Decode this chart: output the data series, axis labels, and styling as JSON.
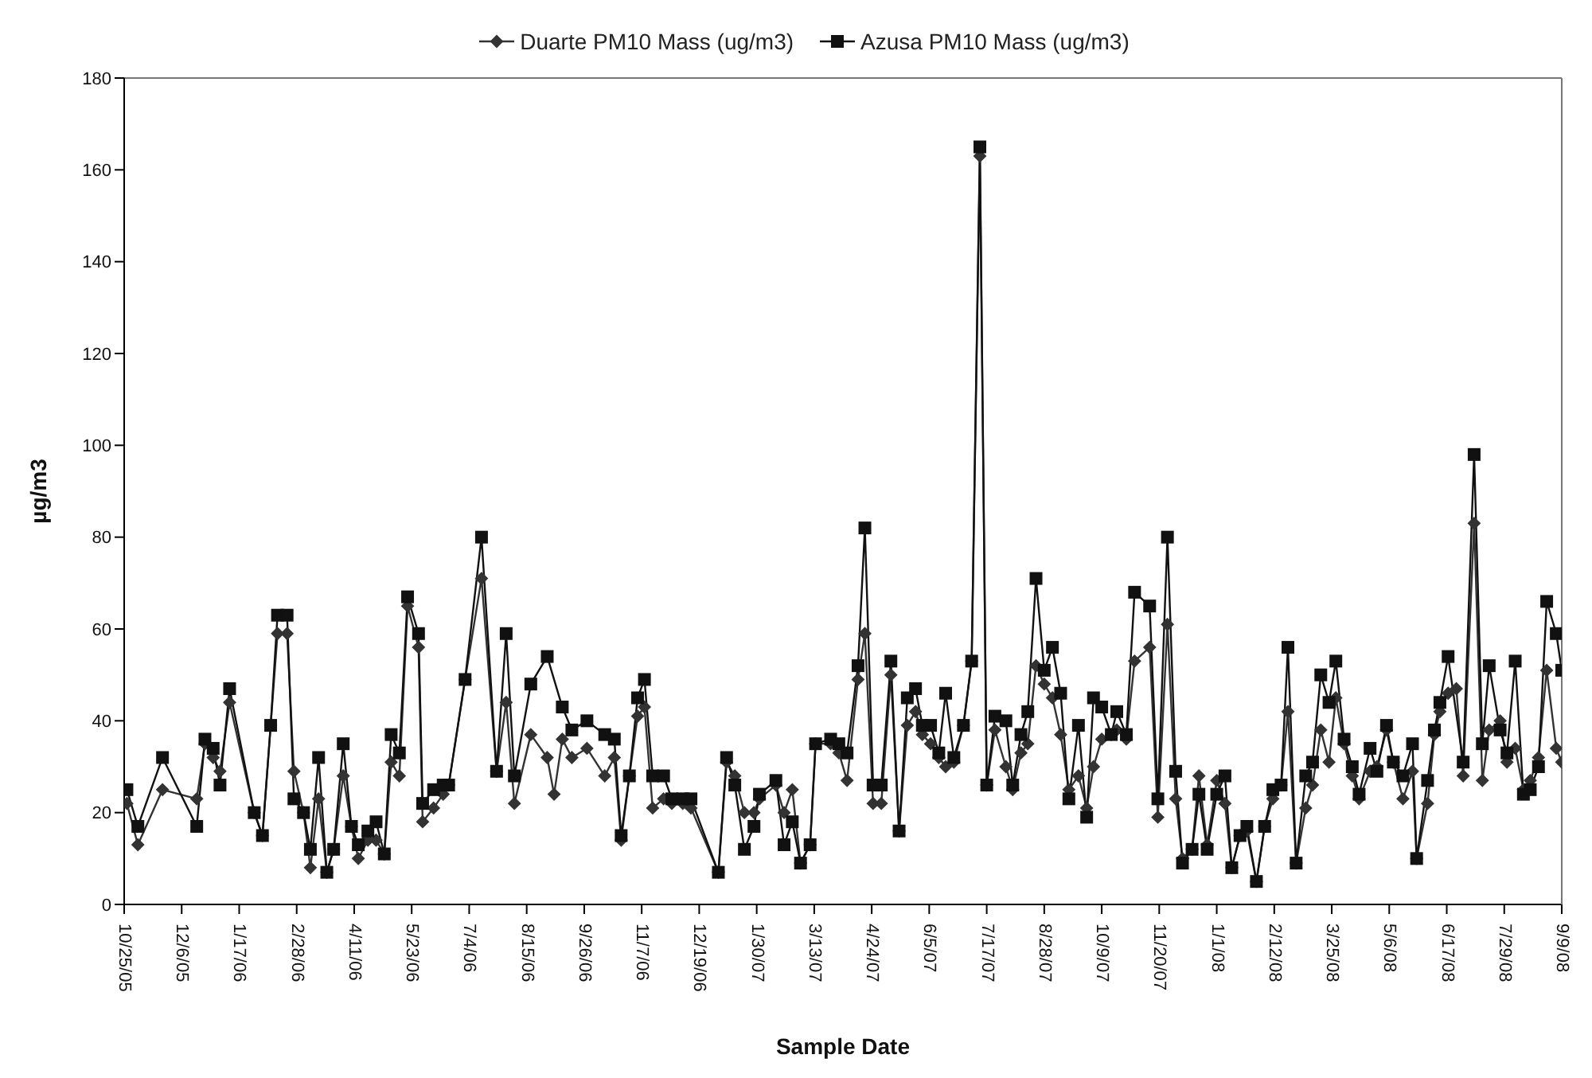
{
  "chart_data": {
    "type": "line",
    "xlabel": "Sample Date",
    "ylabel": "µg/m3",
    "legend": "top",
    "xlim": [
      "2005-10-25",
      "2008-09-09"
    ],
    "xticks": [
      {
        "value": "2005-10-25",
        "label": "10/25/05"
      },
      {
        "value": "2005-12-06",
        "label": "12/6/05"
      },
      {
        "value": "2006-01-17",
        "label": "1/17/06"
      },
      {
        "value": "2006-02-28",
        "label": "2/28/06"
      },
      {
        "value": "2006-04-11",
        "label": "4/11/06"
      },
      {
        "value": "2006-05-23",
        "label": "5/23/06"
      },
      {
        "value": "2006-07-04",
        "label": "7/4/06"
      },
      {
        "value": "2006-08-15",
        "label": "8/15/06"
      },
      {
        "value": "2006-09-26",
        "label": "9/26/06"
      },
      {
        "value": "2006-11-07",
        "label": "11/7/06"
      },
      {
        "value": "2006-12-19",
        "label": "12/19/06"
      },
      {
        "value": "2007-01-30",
        "label": "1/30/07"
      },
      {
        "value": "2007-03-13",
        "label": "3/13/07"
      },
      {
        "value": "2007-04-24",
        "label": "4/24/07"
      },
      {
        "value": "2007-06-05",
        "label": "6/5/07"
      },
      {
        "value": "2007-07-17",
        "label": "7/17/07"
      },
      {
        "value": "2007-08-28",
        "label": "8/28/07"
      },
      {
        "value": "2007-10-09",
        "label": "10/9/07"
      },
      {
        "value": "2007-11-20",
        "label": "11/20/07"
      },
      {
        "value": "2008-01-01",
        "label": "1/1/08"
      },
      {
        "value": "2008-02-12",
        "label": "2/12/08"
      },
      {
        "value": "2008-03-25",
        "label": "3/25/08"
      },
      {
        "value": "2008-05-06",
        "label": "5/6/08"
      },
      {
        "value": "2008-06-17",
        "label": "6/17/08"
      },
      {
        "value": "2008-07-29",
        "label": "7/29/08"
      },
      {
        "value": "2008-09-09",
        "label": "9/9/08"
      }
    ],
    "ylim": [
      0,
      180
    ],
    "yticks": [
      0,
      20,
      40,
      60,
      80,
      100,
      120,
      140,
      160,
      180
    ],
    "x": [
      "2005-10-27",
      "2005-11-04",
      "2005-11-22",
      "2005-12-17",
      "2005-12-23",
      "2005-12-29",
      "2006-01-03",
      "2006-01-10",
      "2006-01-28",
      "2006-02-03",
      "2006-02-09",
      "2006-02-14",
      "2006-02-21",
      "2006-02-26",
      "2006-03-05",
      "2006-03-10",
      "2006-03-16",
      "2006-03-22",
      "2006-03-27",
      "2006-04-03",
      "2006-04-09",
      "2006-04-14",
      "2006-04-21",
      "2006-04-27",
      "2006-05-03",
      "2006-05-08",
      "2006-05-14",
      "2006-05-20",
      "2006-05-28",
      "2006-05-31",
      "2006-06-08",
      "2006-06-15",
      "2006-06-19",
      "2006-07-01",
      "2006-07-13",
      "2006-07-24",
      "2006-07-31",
      "2006-08-06",
      "2006-08-18",
      "2006-08-30",
      "2006-09-04",
      "2006-09-10",
      "2006-09-17",
      "2006-09-28",
      "2006-10-11",
      "2006-10-18",
      "2006-10-23",
      "2006-10-29",
      "2006-11-04",
      "2006-11-09",
      "2006-11-15",
      "2006-11-23",
      "2006-11-29",
      "2006-12-07",
      "2006-12-13",
      "2007-01-02",
      "2007-01-08",
      "2007-01-14",
      "2007-01-21",
      "2007-01-28",
      "2007-02-01",
      "2007-02-13",
      "2007-02-19",
      "2007-02-25",
      "2007-03-03",
      "2007-03-10",
      "2007-03-14",
      "2007-03-25",
      "2007-03-31",
      "2007-04-06",
      "2007-04-14",
      "2007-04-19",
      "2007-04-25",
      "2007-05-01",
      "2007-05-08",
      "2007-05-14",
      "2007-05-20",
      "2007-05-26",
      "2007-05-31",
      "2007-06-06",
      "2007-06-12",
      "2007-06-17",
      "2007-06-23",
      "2007-06-30",
      "2007-07-06",
      "2007-07-12",
      "2007-07-17",
      "2007-07-23",
      "2007-07-31",
      "2007-08-05",
      "2007-08-11",
      "2007-08-16",
      "2007-08-22",
      "2007-08-28",
      "2007-09-03",
      "2007-09-09",
      "2007-09-15",
      "2007-09-22",
      "2007-09-28",
      "2007-10-03",
      "2007-10-09",
      "2007-10-16",
      "2007-10-20",
      "2007-10-27",
      "2007-11-02",
      "2007-11-13",
      "2007-11-19",
      "2007-11-26",
      "2007-12-02",
      "2007-12-07",
      "2007-12-14",
      "2007-12-19",
      "2007-12-25",
      "2008-01-01",
      "2008-01-07",
      "2008-01-12",
      "2008-01-18",
      "2008-01-23",
      "2008-01-30",
      "2008-02-05",
      "2008-02-11",
      "2008-02-17",
      "2008-02-22",
      "2008-02-28",
      "2008-03-06",
      "2008-03-11",
      "2008-03-17",
      "2008-03-23",
      "2008-03-28",
      "2008-04-03",
      "2008-04-09",
      "2008-04-14",
      "2008-04-22",
      "2008-04-27",
      "2008-05-04",
      "2008-05-09",
      "2008-05-16",
      "2008-05-23",
      "2008-05-26",
      "2008-06-03",
      "2008-06-08",
      "2008-06-12",
      "2008-06-18",
      "2008-06-24",
      "2008-06-29",
      "2008-07-07",
      "2008-07-13",
      "2008-07-18",
      "2008-07-26",
      "2008-07-31",
      "2008-08-06",
      "2008-08-12",
      "2008-08-17",
      "2008-08-23",
      "2008-08-29",
      "2008-09-05",
      "2008-09-09"
    ],
    "series": [
      {
        "name": "Duarte PM10 Mass (ug/m3)",
        "color": "#333333",
        "marker": "diamond",
        "values": [
          22,
          13,
          25,
          23,
          35,
          32,
          29,
          44,
          20,
          15,
          39,
          59,
          59,
          29,
          20,
          8,
          23,
          7,
          12,
          28,
          17,
          10,
          14,
          14,
          11,
          31,
          28,
          65,
          56,
          18,
          21,
          24,
          26,
          49,
          71,
          29,
          44,
          22,
          37,
          32,
          24,
          36,
          32,
          34,
          28,
          32,
          14,
          28,
          41,
          43,
          21,
          23,
          22,
          22,
          21,
          7,
          31,
          28,
          20,
          20,
          23,
          26,
          20,
          25,
          9,
          13,
          35,
          35,
          33,
          27,
          49,
          59,
          22,
          22,
          50,
          16,
          39,
          42,
          37,
          35,
          32,
          30,
          31,
          39,
          53,
          163,
          26,
          38,
          30,
          25,
          33,
          35,
          52,
          48,
          45,
          37,
          25,
          28,
          21,
          30,
          36,
          37,
          38,
          36,
          53,
          56,
          19,
          61,
          23,
          10,
          12,
          28,
          13,
          27,
          22,
          8,
          15,
          16,
          5,
          17,
          23,
          26,
          42,
          9,
          21,
          26,
          38,
          31,
          45,
          35,
          28,
          23,
          29,
          30,
          38,
          31,
          23,
          29,
          10,
          22,
          37,
          42,
          46,
          47,
          28,
          83,
          27,
          38,
          40,
          31,
          34,
          25,
          27,
          32,
          51,
          34,
          31
        ]
      },
      {
        "name": "Azusa PM10 Mass (ug/m3)",
        "color": "#111111",
        "marker": "square",
        "values": [
          25,
          17,
          32,
          17,
          36,
          34,
          26,
          47,
          20,
          15,
          39,
          63,
          63,
          23,
          20,
          12,
          32,
          7,
          12,
          35,
          17,
          13,
          16,
          18,
          11,
          37,
          33,
          67,
          59,
          22,
          25,
          26,
          26,
          49,
          80,
          29,
          59,
          28,
          48,
          54,
          null,
          43,
          38,
          40,
          37,
          36,
          15,
          28,
          45,
          49,
          28,
          28,
          23,
          23,
          23,
          7,
          32,
          26,
          12,
          17,
          24,
          27,
          13,
          18,
          9,
          13,
          35,
          36,
          35,
          33,
          52,
          82,
          26,
          26,
          53,
          16,
          45,
          47,
          39,
          39,
          33,
          46,
          32,
          39,
          53,
          165,
          26,
          41,
          40,
          26,
          37,
          42,
          71,
          51,
          56,
          46,
          23,
          39,
          19,
          45,
          43,
          37,
          42,
          37,
          68,
          65,
          23,
          80,
          29,
          9,
          12,
          24,
          12,
          24,
          28,
          8,
          15,
          17,
          5,
          17,
          25,
          26,
          56,
          9,
          28,
          31,
          50,
          44,
          53,
          36,
          30,
          24,
          34,
          29,
          39,
          31,
          28,
          35,
          10,
          27,
          38,
          44,
          54,
          null,
          31,
          98,
          35,
          52,
          38,
          33,
          53,
          24,
          25,
          30,
          66,
          59,
          51
        ]
      }
    ]
  }
}
